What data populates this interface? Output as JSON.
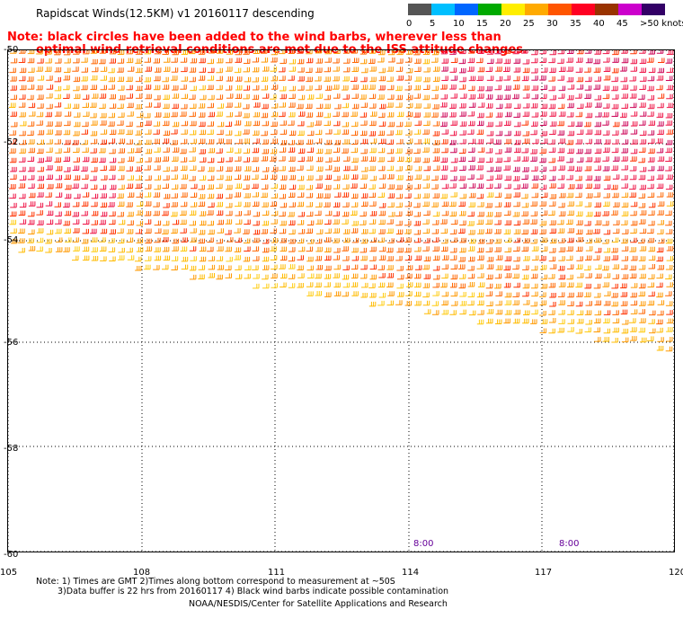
{
  "title": "Rapidscat Winds(12.5KM) v1 20160117 descending",
  "note": {
    "line1": "Note: black circles have been added to the wind barbs, wherever less than",
    "line2": "optimal wind retrieval conditions are met due to the ISS attitude changes."
  },
  "legend": {
    "labels": [
      "0",
      "5",
      "10",
      "15",
      "20",
      "25",
      "30",
      "35",
      "40",
      "45",
      ">50 knots"
    ],
    "colors": [
      "#555555",
      "#00bfff",
      "#0066ff",
      "#00aa00",
      "#ffee00",
      "#ffaa00",
      "#ff5500",
      "#ff0022",
      "#993300",
      "#cc00cc",
      "#330066"
    ]
  },
  "map": {
    "lat_labels": [
      "-50",
      "-52",
      "-54",
      "-56",
      "-58",
      "-60"
    ],
    "lon_labels": [
      "105",
      "108",
      "111",
      "114",
      "117",
      "120"
    ],
    "time_labels": [
      "8:00",
      "8:00"
    ]
  },
  "footer": {
    "line1": "Note: 1) Times are GMT 2)Times along bottom correspond to measurement at ~50S",
    "line2": "3)Data buffer is 22 hrs from 20160117 4) Black wind barbs indicate possible contamination",
    "line3": "NOAA/NESDIS/Center for Satellite Applications and Research"
  },
  "colors": {
    "barb_palette": [
      "#ff9900",
      "#ff6600",
      "#ff3300",
      "#ee1144",
      "#cc0055",
      "#ffbb00",
      "#ffcc11"
    ],
    "grid": "#000000",
    "note": "#ff0000",
    "time": "#660099"
  }
}
